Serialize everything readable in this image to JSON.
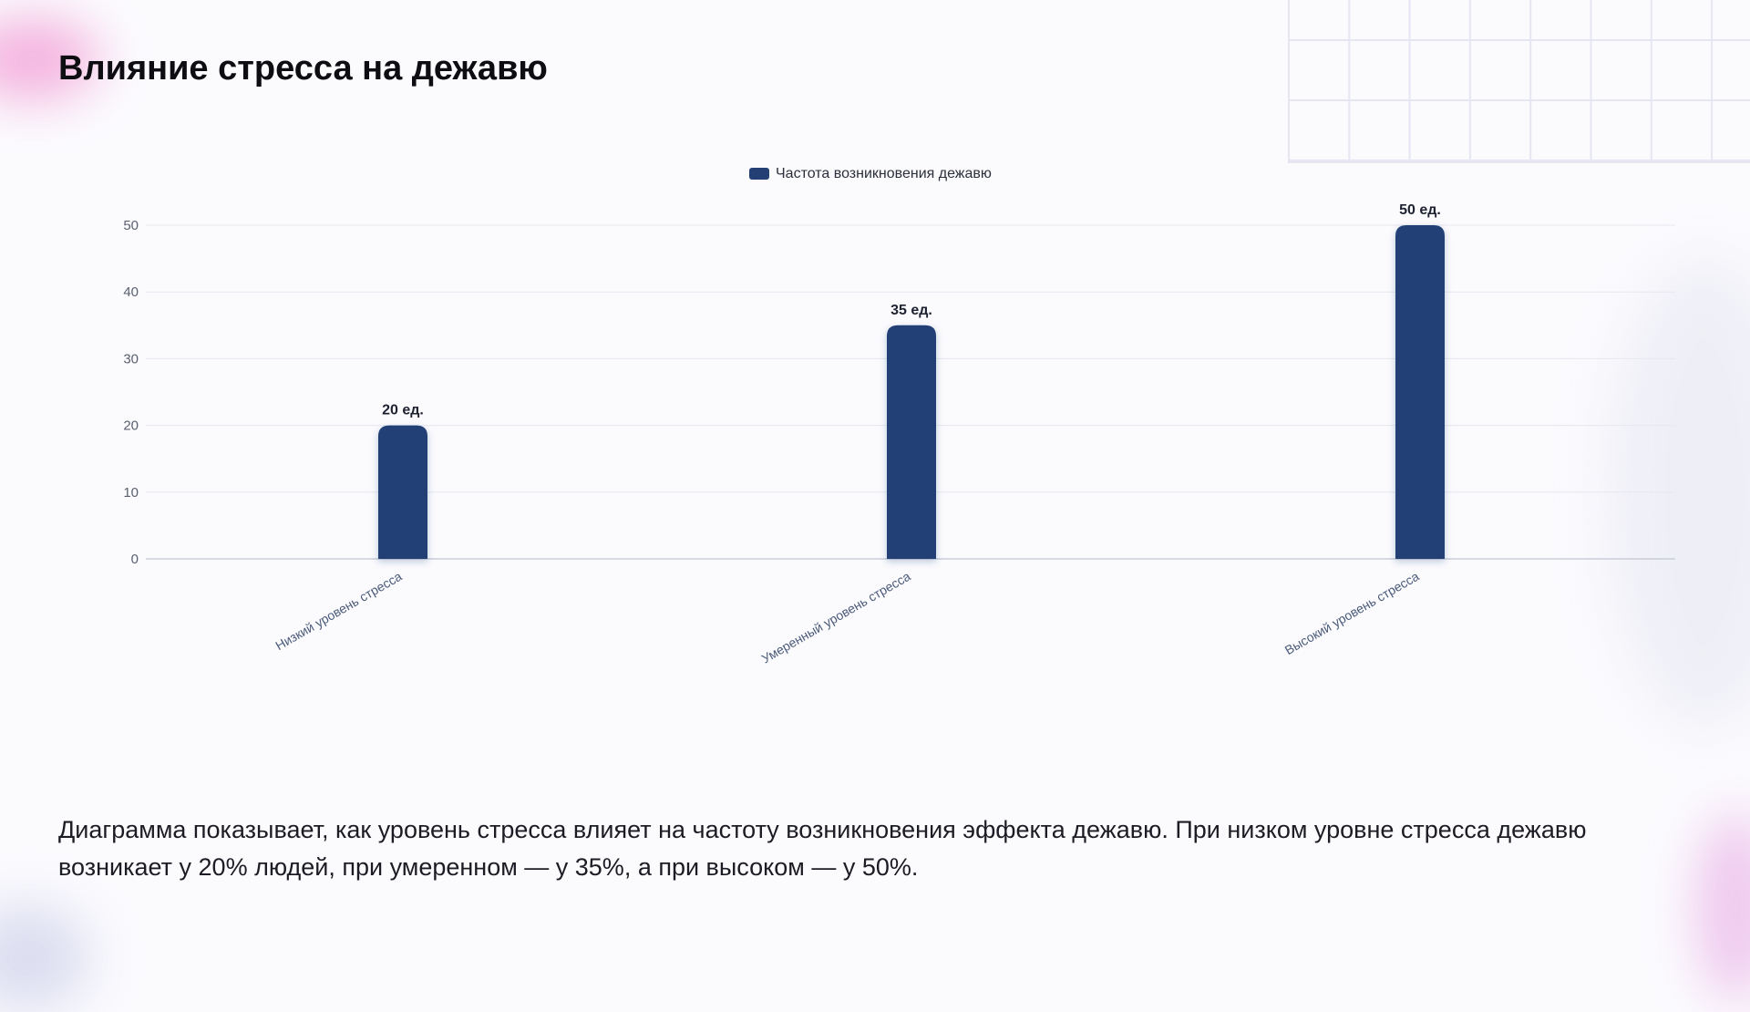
{
  "title": "Влияние стресса на дежавю",
  "description": "Диаграмма показывает, как уровень стресса влияет на частоту возникновения эффекта дежавю. При низком уровне стресса дежавю возникает у 20% людей, при умеренном — у 35%, а при высоком — у 50%.",
  "chart_data": {
    "type": "bar",
    "categories": [
      "Низкий уровень стресса",
      "Умеренный уровень стресса",
      "Высокий уровень стресса"
    ],
    "series": [
      {
        "name": "Частота возникновения дежавю",
        "values": [
          20,
          35,
          50
        ],
        "data_labels": [
          "20 ед.",
          "35 ед.",
          "50 ед."
        ],
        "color": "#243f74"
      }
    ],
    "yticks": [
      "0",
      "10",
      "20",
      "30",
      "40",
      "50"
    ],
    "ylim": [
      0,
      50
    ],
    "grid": true,
    "legend": "top-center",
    "xlabel": "",
    "ylabel": ""
  },
  "colors": {
    "bar": "#243f74",
    "grid": "#e6e8ef",
    "axis": "#c9cdd9",
    "tick_text": "#5b6070",
    "category_text": "#4a5a7a"
  }
}
